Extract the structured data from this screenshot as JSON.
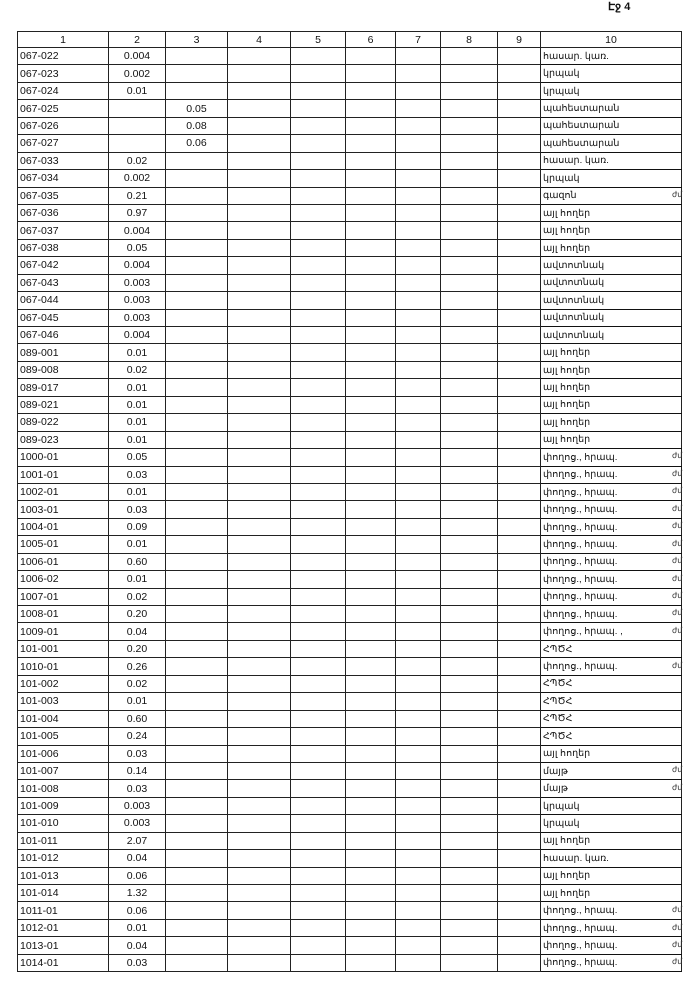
{
  "page_number": "Էջ 4",
  "headers": [
    "1",
    "2",
    "3",
    "4",
    "5",
    "6",
    "7",
    "8",
    "9",
    "10"
  ],
  "rows": [
    [
      "067-022",
      "0.004",
      "",
      "հասար. կառ.",
      ""
    ],
    [
      "067-023",
      "0.002",
      "",
      "կրպակ",
      ""
    ],
    [
      "067-024",
      "0.01",
      "",
      "կրպակ",
      ""
    ],
    [
      "067-025",
      "",
      "0.05",
      "պահեստարան",
      ""
    ],
    [
      "067-026",
      "",
      "0.08",
      "պահեստարան",
      ""
    ],
    [
      "067-027",
      "",
      "0.06",
      "պահեստարան",
      ""
    ],
    [
      "067-033",
      "0.02",
      "",
      "հասար. կառ.",
      ""
    ],
    [
      "067-034",
      "0.002",
      "",
      "կրպակ",
      ""
    ],
    [
      "067-035",
      "0.21",
      "",
      "գազոն",
      "ժմ"
    ],
    [
      "067-036",
      "0.97",
      "",
      "այլ հողեր",
      ""
    ],
    [
      "067-037",
      "0.004",
      "",
      "այլ հողեր",
      ""
    ],
    [
      "067-038",
      "0.05",
      "",
      "այլ հողեր",
      ""
    ],
    [
      "067-042",
      "0.004",
      "",
      "ավտոտնակ",
      ""
    ],
    [
      "067-043",
      "0.003",
      "",
      "ավտոտնակ",
      ""
    ],
    [
      "067-044",
      "0.003",
      "",
      "ավտոտնակ",
      ""
    ],
    [
      "067-045",
      "0.003",
      "",
      "ավտոտնակ",
      ""
    ],
    [
      "067-046",
      "0.004",
      "",
      "ավտոտնակ",
      ""
    ],
    [
      "089-001",
      "0.01",
      "",
      "այլ հողեր",
      ""
    ],
    [
      "089-008",
      "0.02",
      "",
      "այլ հողեր",
      ""
    ],
    [
      "089-017",
      "0.01",
      "",
      "այլ հողեր",
      ""
    ],
    [
      "089-021",
      "0.01",
      "",
      "այլ հողեր",
      ""
    ],
    [
      "089-022",
      "0.01",
      "",
      "այլ հողեր",
      ""
    ],
    [
      "089-023",
      "0.01",
      "",
      "այլ հողեր",
      ""
    ],
    [
      "1000-01",
      "0.05",
      "",
      "փողոց., հրապ.",
      "ժմ"
    ],
    [
      "1001-01",
      "0.03",
      "",
      "փողոց., հրապ.",
      "ժմ"
    ],
    [
      "1002-01",
      "0.01",
      "",
      "փողոց., հրապ.",
      "ժմ"
    ],
    [
      "1003-01",
      "0.03",
      "",
      "փողոց., հրապ.",
      "ժմ"
    ],
    [
      "1004-01",
      "0.09",
      "",
      "փողոց., հրապ.",
      "ժմ"
    ],
    [
      "1005-01",
      "0.01",
      "",
      "փողոց., հրապ.",
      "ժմ"
    ],
    [
      "1006-01",
      "0.60",
      "",
      "փողոց., հրապ.",
      "ժմ"
    ],
    [
      "1006-02",
      "0.01",
      "",
      "փողոց., հրապ.",
      "ժմ"
    ],
    [
      "1007-01",
      "0.02",
      "",
      "փողոց., հրապ.",
      "ժմ"
    ],
    [
      "1008-01",
      "0.20",
      "",
      "փողոց., հրապ.",
      "ժմ"
    ],
    [
      "1009-01",
      "0.04",
      "",
      "փողոց., հրապ. ,",
      "ժմ"
    ],
    [
      "101-001",
      "0.20",
      "",
      "ՀՊԾՀ",
      ""
    ],
    [
      "1010-01",
      "0.26",
      "",
      "փողոց., հրապ.",
      "ժմ"
    ],
    [
      "101-002",
      "0.02",
      "",
      "ՀՊԾՀ",
      ""
    ],
    [
      "101-003",
      "0.01",
      "",
      "ՀՊԾՀ",
      ""
    ],
    [
      "101-004",
      "0.60",
      "",
      "ՀՊԾՀ",
      ""
    ],
    [
      "101-005",
      "0.24",
      "",
      "ՀՊԾՀ",
      ""
    ],
    [
      "101-006",
      "0.03",
      "",
      "այլ հողեր",
      ""
    ],
    [
      "101-007",
      "0.14",
      "",
      "մայթ",
      "ժմ"
    ],
    [
      "101-008",
      "0.03",
      "",
      "մայթ",
      "ժմ"
    ],
    [
      "101-009",
      "0.003",
      "",
      "կրպակ",
      ""
    ],
    [
      "101-010",
      "0.003",
      "",
      "կրպակ",
      ""
    ],
    [
      "101-011",
      "2.07",
      "",
      "այլ հողեր",
      ""
    ],
    [
      "101-012",
      "0.04",
      "",
      "հասար. կառ.",
      ""
    ],
    [
      "101-013",
      "0.06",
      "",
      "այլ հողեր",
      ""
    ],
    [
      "101-014",
      "1.32",
      "",
      "այլ հողեր",
      ""
    ],
    [
      "1011-01",
      "0.06",
      "",
      "փողոց., հրապ.",
      "ժմ"
    ],
    [
      "1012-01",
      "0.01",
      "",
      "փողոց., հրապ.",
      "ժմ"
    ],
    [
      "1013-01",
      "0.04",
      "",
      "փողոց., հրապ.",
      "ժմ"
    ],
    [
      "1014-01",
      "0.03",
      "",
      "փողոց., հրապ.",
      "ժմ"
    ]
  ]
}
